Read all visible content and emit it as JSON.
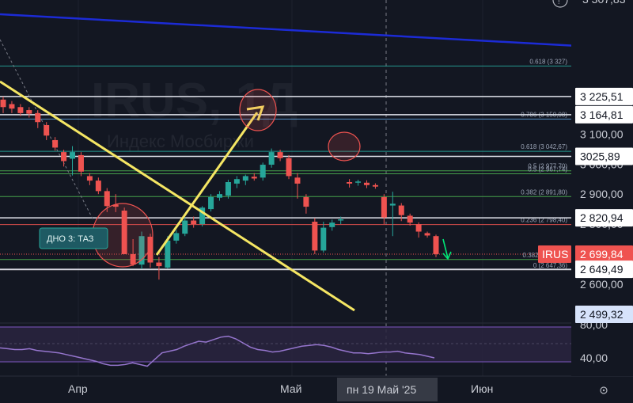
{
  "instrument": "IRUS",
  "watermark": {
    "title": "IRUS, 1Д",
    "subtitle": "Индекс Мосбиржи"
  },
  "top_cut_label": "3 307,83",
  "price_labels": [
    {
      "text": "3 225,51",
      "value": 3225.51,
      "style": "white"
    },
    {
      "text": "3 164,81",
      "value": 3164.81,
      "style": "white"
    },
    {
      "text": "3025,89",
      "value": 3025.89,
      "style": "white"
    },
    {
      "text": "2 820,94",
      "value": 2820.94,
      "style": "white"
    },
    {
      "text": "2 699,84",
      "value": 2699.84,
      "style": "red"
    },
    {
      "text": "2 649,49",
      "value": 2649.49,
      "style": "white"
    },
    {
      "text": "2 499,32",
      "value": 2499.32,
      "style": "highlight"
    }
  ],
  "price_ticks": [
    {
      "text": "3 100,00",
      "value": 3100
    },
    {
      "text": "3 000,00",
      "value": 3000
    },
    {
      "text": "2 900,00",
      "value": 2900
    },
    {
      "text": "2 800,00",
      "value": 2800
    },
    {
      "text": "2 600,00",
      "value": 2600
    }
  ],
  "fib_levels": [
    {
      "text": "0.618 (3 327)",
      "value": 3327,
      "color": "#26a69a"
    },
    {
      "text": "0.786 (3 150,08)",
      "value": 3150.08,
      "color": "#5b9bd5"
    },
    {
      "text": "0.618 (3 042,67)",
      "value": 3042.67,
      "color": "#26a69a"
    },
    {
      "text": "0.5 (2 977,70)",
      "value": 2977.7,
      "color": "#4caf50"
    },
    {
      "text": "0.5 (2 967,74)",
      "value": 2967.74,
      "color": "#4caf50"
    },
    {
      "text": "0.382 (2 891,80)",
      "value": 2891.8,
      "color": "#4caf50"
    },
    {
      "text": "0.236 (2 798,40)",
      "value": 2798.4,
      "color": "#ef5350"
    },
    {
      "text": "0.382 (2 692,...)",
      "value": 2682,
      "color": "#4caf50"
    },
    {
      "text": "0 (2 647,36)",
      "value": 2647.36,
      "color": "#9e9e9e"
    }
  ],
  "annotation": "ДНО 3: ТАЗ",
  "symbol_badge": "IRUS",
  "time_labels": [
    "Апр",
    "Май",
    "Июн"
  ],
  "crosshair_date": "пн 19 Май '25",
  "indicator": {
    "ticks": [
      "80,00",
      "40,00"
    ],
    "tick_values": [
      80,
      40
    ]
  },
  "chart_data": {
    "type": "candlestick",
    "ylim": [
      2560,
      3370
    ],
    "candles": [
      {
        "o": 3215,
        "h": 3225,
        "l": 3170,
        "c": 3190
      },
      {
        "o": 3200,
        "h": 3210,
        "l": 3170,
        "c": 3185
      },
      {
        "o": 3190,
        "h": 3200,
        "l": 3160,
        "c": 3170
      },
      {
        "o": 3180,
        "h": 3190,
        "l": 3155,
        "c": 3168
      },
      {
        "o": 3170,
        "h": 3180,
        "l": 3120,
        "c": 3140
      },
      {
        "o": 3130,
        "h": 3140,
        "l": 3080,
        "c": 3095
      },
      {
        "o": 3080,
        "h": 3090,
        "l": 3045,
        "c": 3055
      },
      {
        "o": 3040,
        "h": 3048,
        "l": 2992,
        "c": 3010
      },
      {
        "o": 3018,
        "h": 3060,
        "l": 2962,
        "c": 3040
      },
      {
        "o": 3030,
        "h": 3040,
        "l": 2960,
        "c": 2975
      },
      {
        "o": 2960,
        "h": 2970,
        "l": 2930,
        "c": 2945
      },
      {
        "o": 2945,
        "h": 2955,
        "l": 2900,
        "c": 2910
      },
      {
        "o": 2910,
        "h": 2920,
        "l": 2840,
        "c": 2860
      },
      {
        "o": 2865,
        "h": 2900,
        "l": 2840,
        "c": 2858
      },
      {
        "o": 2845,
        "h": 2855,
        "l": 2700,
        "c": 2700
      },
      {
        "o": 2700,
        "h": 2750,
        "l": 2660,
        "c": 2665
      },
      {
        "o": 2665,
        "h": 2775,
        "l": 2650,
        "c": 2760
      },
      {
        "o": 2758,
        "h": 2768,
        "l": 2655,
        "c": 2672
      },
      {
        "o": 2672,
        "h": 2690,
        "l": 2615,
        "c": 2660
      },
      {
        "o": 2655,
        "h": 2760,
        "l": 2652,
        "c": 2745
      },
      {
        "o": 2745,
        "h": 2780,
        "l": 2735,
        "c": 2770
      },
      {
        "o": 2768,
        "h": 2822,
        "l": 2760,
        "c": 2812
      },
      {
        "o": 2812,
        "h": 2825,
        "l": 2788,
        "c": 2800
      },
      {
        "o": 2800,
        "h": 2860,
        "l": 2792,
        "c": 2855
      },
      {
        "o": 2850,
        "h": 2900,
        "l": 2842,
        "c": 2890
      },
      {
        "o": 2888,
        "h": 2910,
        "l": 2878,
        "c": 2900
      },
      {
        "o": 2895,
        "h": 2948,
        "l": 2885,
        "c": 2940
      },
      {
        "o": 2935,
        "h": 2960,
        "l": 2920,
        "c": 2950
      },
      {
        "o": 2945,
        "h": 2965,
        "l": 2930,
        "c": 2960
      },
      {
        "o": 2958,
        "h": 2970,
        "l": 2945,
        "c": 2952
      },
      {
        "o": 2955,
        "h": 3005,
        "l": 2945,
        "c": 2998
      },
      {
        "o": 2998,
        "h": 3052,
        "l": 2988,
        "c": 3040
      },
      {
        "o": 3040,
        "h": 3048,
        "l": 3010,
        "c": 3020
      },
      {
        "o": 3020,
        "h": 3030,
        "l": 2950,
        "c": 2960
      },
      {
        "o": 2955,
        "h": 2970,
        "l": 2885,
        "c": 2935
      },
      {
        "o": 2890,
        "h": 2900,
        "l": 2835,
        "c": 2858
      },
      {
        "o": 2808,
        "h": 2820,
        "l": 2700,
        "c": 2712
      },
      {
        "o": 2712,
        "h": 2808,
        "l": 2705,
        "c": 2788
      },
      {
        "o": 2790,
        "h": 2815,
        "l": 2778,
        "c": 2805
      },
      {
        "o": 2812,
        "h": 2825,
        "l": 2800,
        "c": 2816
      },
      {
        "o": 2940,
        "h": 2950,
        "l": 2922,
        "c": 2935
      },
      {
        "o": 2940,
        "h": 2948,
        "l": 2928,
        "c": 2942
      },
      {
        "o": 2938,
        "h": 2946,
        "l": 2920,
        "c": 2930
      },
      {
        "o": 2930,
        "h": 2936,
        "l": 2918,
        "c": 2925
      },
      {
        "o": 2890,
        "h": 2900,
        "l": 2800,
        "c": 2822
      },
      {
        "o": 2862,
        "h": 2908,
        "l": 2760,
        "c": 2868
      },
      {
        "o": 2862,
        "h": 2870,
        "l": 2810,
        "c": 2830
      },
      {
        "o": 2828,
        "h": 2835,
        "l": 2795,
        "c": 2805
      },
      {
        "o": 2800,
        "h": 2806,
        "l": 2755,
        "c": 2775
      },
      {
        "o": 2770,
        "h": 2775,
        "l": 2755,
        "c": 2762
      },
      {
        "o": 2760,
        "h": 2765,
        "l": 2690,
        "c": 2700
      }
    ],
    "oscillator": [
      52,
      51,
      50,
      50,
      51,
      49,
      48,
      47,
      46,
      44,
      42,
      40,
      38,
      36,
      33,
      31,
      31,
      32,
      34,
      32,
      30,
      38,
      46,
      48,
      50,
      54,
      57,
      60,
      59,
      62,
      65,
      66,
      63,
      58,
      53,
      50,
      49,
      47,
      48,
      50,
      52,
      54,
      55,
      56,
      55,
      53,
      50,
      48,
      46,
      46,
      45,
      46,
      47,
      47,
      48,
      46,
      45,
      44,
      42,
      40
    ]
  }
}
